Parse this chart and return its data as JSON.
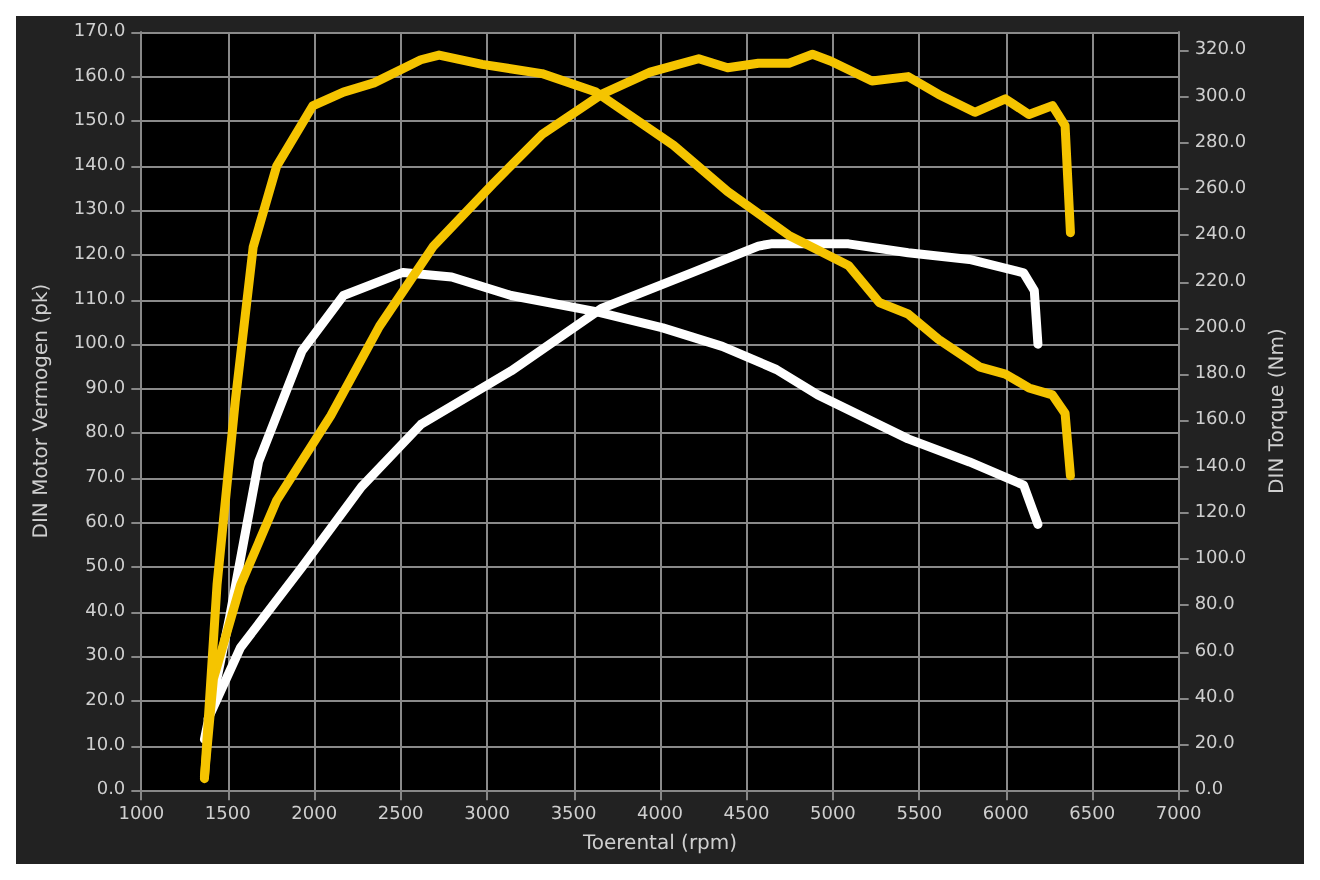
{
  "chart_data": {
    "type": "line",
    "xlabel": "Toerental (rpm)",
    "ylabel": "DIN Motor Vermogen (pk)",
    "y2label": "DIN Torque (Nm)",
    "xlim": [
      1000,
      7000
    ],
    "xticks": [
      1000,
      1500,
      2000,
      2500,
      3000,
      3500,
      4000,
      4500,
      5000,
      5500,
      6000,
      6500,
      7000
    ],
    "ylim": [
      0,
      170
    ],
    "yticks": [
      {
        "value": 0,
        "label": "0.0"
      },
      {
        "value": 10,
        "label": "10.0"
      },
      {
        "value": 20,
        "label": "20.0"
      },
      {
        "value": 30,
        "label": "30.0"
      },
      {
        "value": 40,
        "label": "40.0"
      },
      {
        "value": 50,
        "label": "50.0"
      },
      {
        "value": 60,
        "label": "60.0"
      },
      {
        "value": 70,
        "label": "70.0"
      },
      {
        "value": 80,
        "label": "80.0"
      },
      {
        "value": 90,
        "label": "90.0"
      },
      {
        "value": 100,
        "label": "100.0"
      },
      {
        "value": 110,
        "label": "110.0"
      },
      {
        "value": 120,
        "label": "120.0"
      },
      {
        "value": 130,
        "label": "130.0"
      },
      {
        "value": 140,
        "label": "140.0"
      },
      {
        "value": 150,
        "label": "150.0"
      },
      {
        "value": 160,
        "label": "160.0"
      },
      {
        "value": 170,
        "label": "170.0"
      }
    ],
    "y2lim": [
      0,
      328
    ],
    "y2ticks": [
      {
        "value": 0,
        "label": "0.0"
      },
      {
        "value": 20,
        "label": "20.0"
      },
      {
        "value": 40,
        "label": "40.0"
      },
      {
        "value": 60,
        "label": "60.0"
      },
      {
        "value": 80,
        "label": "80.0"
      },
      {
        "value": 100,
        "label": "100.0"
      },
      {
        "value": 120,
        "label": "120.0"
      },
      {
        "value": 140,
        "label": "140.0"
      },
      {
        "value": 160,
        "label": "160.0"
      },
      {
        "value": 180,
        "label": "180.0"
      },
      {
        "value": 200,
        "label": "200.0"
      },
      {
        "value": 220,
        "label": "220.0"
      },
      {
        "value": 240,
        "label": "240.0"
      },
      {
        "value": 260,
        "label": "260.0"
      },
      {
        "value": 280,
        "label": "280.0"
      },
      {
        "value": 300,
        "label": "300.0"
      },
      {
        "value": 320,
        "label": "320.0"
      }
    ],
    "grid": true,
    "marker": "none",
    "line_style": "solid",
    "series": [
      {
        "color": "#ffffff",
        "x": [
          1386,
          1574,
          1929,
          2273,
          2617,
          3139,
          3661,
          4183,
          4569,
          4642,
          5090,
          5435,
          5790,
          6103,
          6165,
          6186
        ],
        "values": [
          16,
          32,
          50,
          68,
          82,
          94,
          108,
          116,
          122,
          122.5,
          122.5,
          120.5,
          119,
          116,
          112,
          100
        ]
      },
      {
        "color": "#ffffff",
        "axis": "y2",
        "x": [
          1365,
          1511,
          1678,
          1929,
          2169,
          2513,
          2795,
          3139,
          3630,
          4016,
          4360,
          4673,
          4913,
          5435,
          5790,
          6103,
          6186
        ],
        "values": [
          22,
          75,
          142,
          190,
          214,
          224,
          222,
          214,
          207,
          200,
          192,
          182,
          171,
          152,
          142,
          132,
          115
        ]
      },
      {
        "color": "#f5c400",
        "x": [
          1365,
          1417,
          1574,
          1783,
          2096,
          2377,
          2690,
          3035,
          3317,
          3661,
          3943,
          4224,
          4391,
          4569,
          4746,
          4882,
          4986,
          5226,
          5435,
          5612,
          5821,
          5998,
          6134,
          6270,
          6343,
          6374
        ],
        "values": [
          3,
          25,
          46,
          65,
          84,
          104,
          122,
          136,
          147,
          156,
          161,
          164,
          162,
          163,
          163,
          165,
          163.5,
          159,
          160,
          156,
          152,
          155,
          151.5,
          153.5,
          149,
          125
        ]
      },
      {
        "color": "#f5c400",
        "axis": "y2",
        "x": [
          1365,
          1438,
          1543,
          1647,
          1783,
          1991,
          2169,
          2346,
          2617,
          2722,
          2972,
          3317,
          3630,
          4078,
          4391,
          4746,
          5090,
          5268,
          5435,
          5612,
          5852,
          5998,
          6134,
          6270,
          6343,
          6374
        ],
        "values": [
          5,
          89,
          168,
          235,
          270,
          296,
          302,
          306,
          316,
          318,
          314,
          310,
          302,
          279,
          259,
          240,
          227,
          211,
          206,
          195,
          183,
          180,
          174,
          171,
          163,
          136
        ]
      }
    ]
  }
}
